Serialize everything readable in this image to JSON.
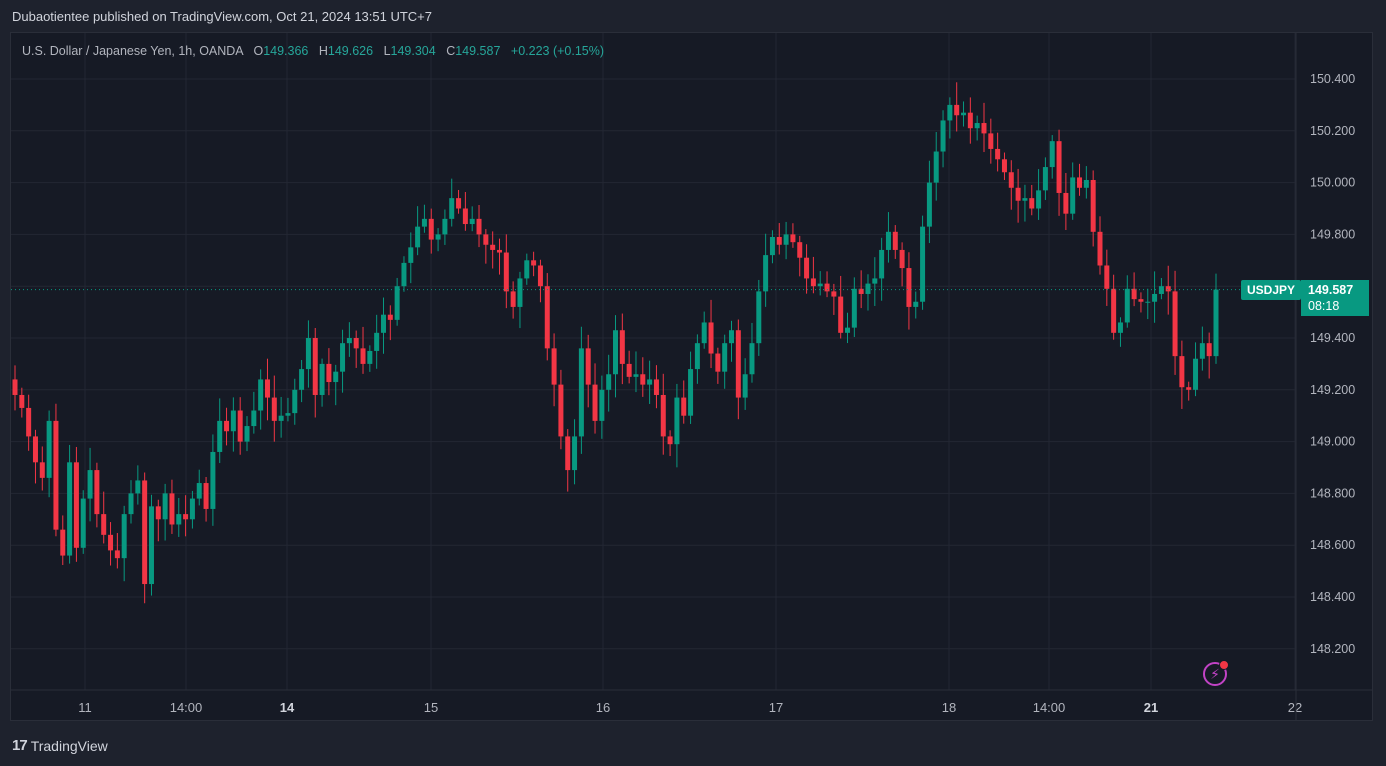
{
  "publisher": "Dubaotientee published on TradingView.com, Oct 21, 2024 13:51 UTC+7",
  "legend": {
    "title": "U.S. Dollar / Japanese Yen, 1h, OANDA",
    "o_label": "O",
    "o_value": "149.366",
    "h_label": "H",
    "h_value": "149.626",
    "l_label": "L",
    "l_value": "149.304",
    "c_label": "C",
    "c_value": "149.587",
    "change": "+0.223 (+0.15%)"
  },
  "symbol_tag": "USDJPY",
  "price_tag": {
    "price": "149.587",
    "countdown": "08:18"
  },
  "footer": {
    "logo_mark": "17",
    "brand": "TradingView"
  },
  "colors": {
    "up": "#089981",
    "down": "#f23645",
    "grid": "#232733",
    "text": "#b2b5be",
    "background": "#161a25"
  },
  "icons": {
    "alert": "bolt-icon"
  },
  "chart_data": {
    "type": "candlestick",
    "symbol": "USDJPY",
    "interval": "1h",
    "ylim": [
      148.08,
      150.5
    ],
    "y_ticks": [
      "148.200",
      "148.400",
      "148.600",
      "148.800",
      "149.000",
      "149.200",
      "149.400",
      "149.600",
      "149.800",
      "150.000",
      "150.200",
      "150.400"
    ],
    "x_ticks": [
      {
        "label": "11",
        "bold": false
      },
      {
        "label": "14:00",
        "bold": false
      },
      {
        "label": "14",
        "bold": true
      },
      {
        "label": "15",
        "bold": false
      },
      {
        "label": "16",
        "bold": false
      },
      {
        "label": "17",
        "bold": false
      },
      {
        "label": "18",
        "bold": false
      },
      {
        "label": "14:00",
        "bold": false
      },
      {
        "label": "21",
        "bold": true
      },
      {
        "label": "22",
        "bold": false
      }
    ],
    "last_price": 149.587,
    "candles_close": [
      149.18,
      149.13,
      149.02,
      148.92,
      148.86,
      149.08,
      148.66,
      148.56,
      148.92,
      148.59,
      148.78,
      148.89,
      148.72,
      148.64,
      148.58,
      148.55,
      148.72,
      148.8,
      148.85,
      148.45,
      148.75,
      148.7,
      148.8,
      148.68,
      148.72,
      148.7,
      148.78,
      148.84,
      148.74,
      148.96,
      149.08,
      149.04,
      149.12,
      149.0,
      149.06,
      149.12,
      149.24,
      149.17,
      149.08,
      149.1,
      149.11,
      149.2,
      149.28,
      149.4,
      149.18,
      149.3,
      149.23,
      149.27,
      149.38,
      149.4,
      149.36,
      149.3,
      149.35,
      149.42,
      149.49,
      149.47,
      149.6,
      149.69,
      149.75,
      149.83,
      149.86,
      149.78,
      149.8,
      149.86,
      149.94,
      149.9,
      149.84,
      149.86,
      149.8,
      149.76,
      149.74,
      149.73,
      149.58,
      149.52,
      149.63,
      149.7,
      149.68,
      149.6,
      149.36,
      149.22,
      149.02,
      148.89,
      149.02,
      149.36,
      149.22,
      149.08,
      149.2,
      149.26,
      149.43,
      149.3,
      149.25,
      149.26,
      149.22,
      149.24,
      149.18,
      149.02,
      148.99,
      149.17,
      149.1,
      149.28,
      149.38,
      149.46,
      149.34,
      149.27,
      149.38,
      149.43,
      149.17,
      149.26,
      149.38,
      149.58,
      149.72,
      149.79,
      149.76,
      149.8,
      149.77,
      149.71,
      149.63,
      149.6,
      149.61,
      149.58,
      149.56,
      149.42,
      149.44,
      149.59,
      149.57,
      149.61,
      149.63,
      149.74,
      149.81,
      149.74,
      149.67,
      149.52,
      149.54,
      149.83,
      150.0,
      150.12,
      150.24,
      150.3,
      150.26,
      150.27,
      150.21,
      150.23,
      150.19,
      150.13,
      150.09,
      150.04,
      149.98,
      149.93,
      149.94,
      149.9,
      149.97,
      150.06,
      150.16,
      149.96,
      149.88,
      150.02,
      149.98,
      150.01,
      149.81,
      149.68,
      149.59,
      149.42,
      149.46,
      149.59,
      149.55,
      149.54,
      149.54,
      149.57,
      149.6,
      149.58,
      149.33,
      149.21,
      149.2,
      149.32,
      149.38,
      149.33,
      149.587
    ]
  }
}
